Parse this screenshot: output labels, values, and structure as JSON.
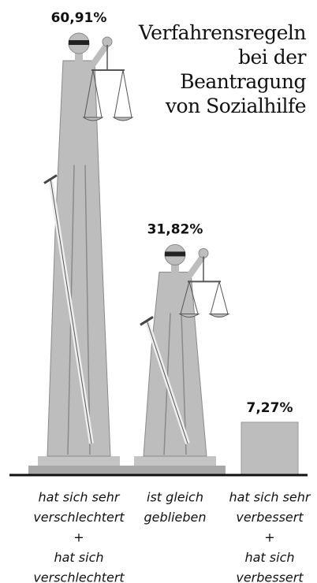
{
  "chart_data": {
    "type": "pictogram",
    "title": [
      "Verfahrensregeln",
      "bei der",
      "Beantragung",
      "von Sozialhilfe"
    ],
    "categories": [
      [
        "hat sich sehr",
        "verschlechtert",
        "+",
        "hat sich",
        "verschlechtert"
      ],
      [
        "ist gleich",
        "geblieben"
      ],
      [
        "hat sich sehr",
        "verbessert",
        "+",
        "hat sich",
        "verbessert"
      ]
    ],
    "values": [
      60.91,
      31.82,
      7.27
    ],
    "value_labels": [
      "60,91%",
      "31,82%",
      "7,27%"
    ],
    "color": "#bdbdbd"
  }
}
